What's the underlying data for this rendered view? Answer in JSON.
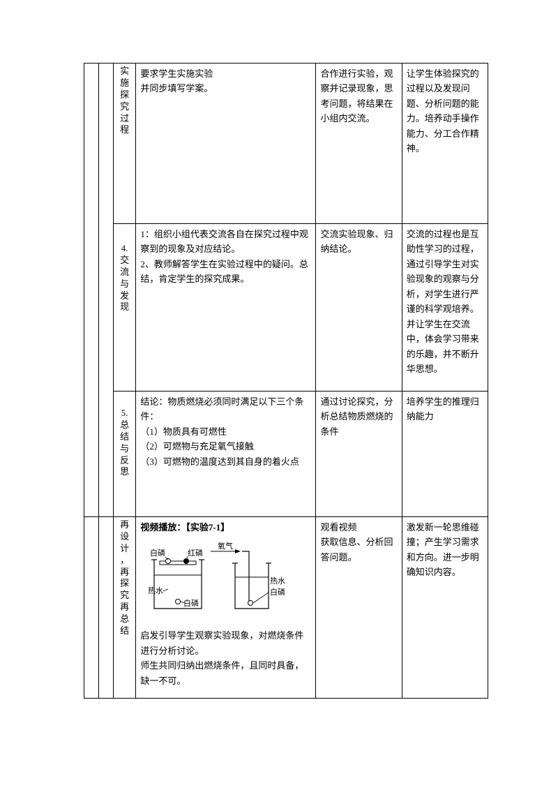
{
  "rows": {
    "r1": {
      "phase": "实施探究过程",
      "content": "要求学生实施实验\n并同步填写学案。",
      "activity": "合作进行实验，观察并记录现象，思考问题，将结果在小组内交流。",
      "purpose": "让学生体验探究的过程以及发现问题、分析问题的能力。培养动手操作能力、分工合作精神。"
    },
    "r2": {
      "phase_num": "4.",
      "phase": "交流与发现",
      "content": "1：组织小组代表交流各自在探究过程中观察到的现象及对应结论。\n2、教师解答学生在实验过程中的疑问。总结，肯定学生的探究成果。",
      "activity": "交流实验现象、归纳结论。",
      "purpose": "交流的过程也是互助性学习的过程，通过引导学生对实验现象的观察与分析，对学生进行严谨的科学观培养。并让学生在交流中，体会学习带来的乐趣，并不断升华思想。"
    },
    "r3": {
      "phase_num": "5.",
      "phase": "总结与反思",
      "content": "结论：物质燃烧必须同时满足以下三个条件：\n（1）物质具有可燃性\n（2）可燃物与充足氧气接触\n（3）可燃物的温度达到其自身的着火点",
      "activity": "通过讨论探究，分析总结物质燃烧的条件",
      "purpose": "培养学生的推理归纳能力"
    },
    "r4": {
      "phase": "再设计，再探究再总结",
      "title_prefix": "视频播放：",
      "title_bracket": "【实验7-1】",
      "content_after": "启发引导学生观察实验现象，对燃烧条件进行分析讨论。\n师生共同归纳出燃烧条件，且同时具备，缺一不可。",
      "activity": "观看视频\n获取信息、分析回答问题。",
      "purpose": "激发新一轮思维碰撞；产生学习需求和方向。进一步明确知识内容。",
      "diagram": {
        "labels": {
          "white_p_left": "白磷",
          "red_p": "红磷",
          "hot_water_left": "热水",
          "white_p_bottom": "白磷",
          "oxygen": "氧气",
          "hot_water_right": "热水",
          "white_p_right": "白磷"
        },
        "colors": {
          "stroke": "#000000",
          "fill": "#ffffff"
        }
      }
    }
  }
}
